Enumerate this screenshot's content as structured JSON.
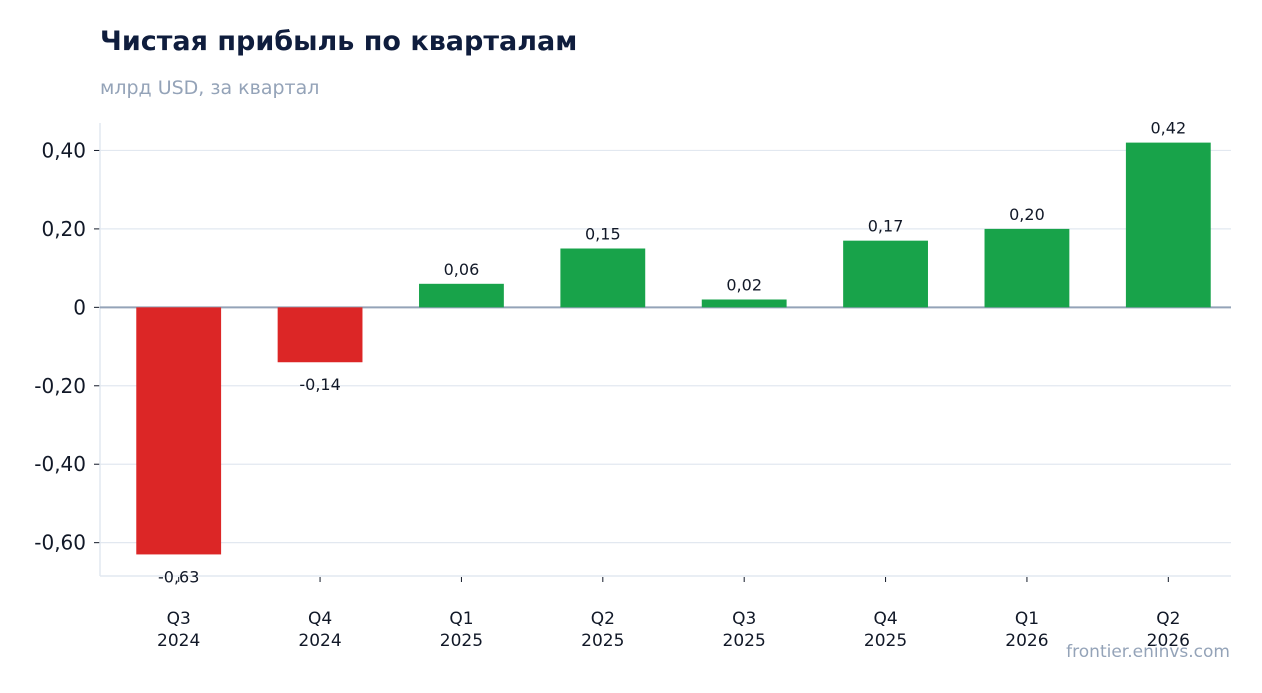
{
  "header": {
    "title": "Чистая прибыль по кварталам",
    "subtitle": "млрд USD, за квартал"
  },
  "footer": {
    "source": "frontier.eninvs.com"
  },
  "colors": {
    "positive": "#18a34a",
    "negative": "#dc2626",
    "grid": "#e2e8f0",
    "zero_line": "#94a3b8",
    "text": "#111827"
  },
  "chart_data": {
    "type": "bar",
    "title": "Чистая прибыль по кварталам",
    "subtitle": "млрд USD, за квартал",
    "xlabel": "",
    "ylabel": "",
    "categories": [
      [
        "Q3",
        "2024"
      ],
      [
        "Q4",
        "2024"
      ],
      [
        "Q1",
        "2025"
      ],
      [
        "Q2",
        "2025"
      ],
      [
        "Q3",
        "2025"
      ],
      [
        "Q4",
        "2025"
      ],
      [
        "Q1",
        "2026"
      ],
      [
        "Q2",
        "2026"
      ]
    ],
    "values": [
      -0.63,
      -0.14,
      0.06,
      0.15,
      0.02,
      0.17,
      0.2,
      0.42
    ],
    "value_labels": [
      "-0,63",
      "-0,14",
      "0,06",
      "0,15",
      "0,02",
      "0,17",
      "0,20",
      "0,42"
    ],
    "yticks": [
      0.4,
      0.2,
      0,
      -0.2,
      -0.4,
      -0.6
    ],
    "ytick_labels": [
      "0,40",
      "0,20",
      "0",
      "-0,20",
      "-0,40",
      "-0,60"
    ],
    "ylim": [
      -0.685,
      0.47
    ],
    "grid": true,
    "legend": "none"
  }
}
